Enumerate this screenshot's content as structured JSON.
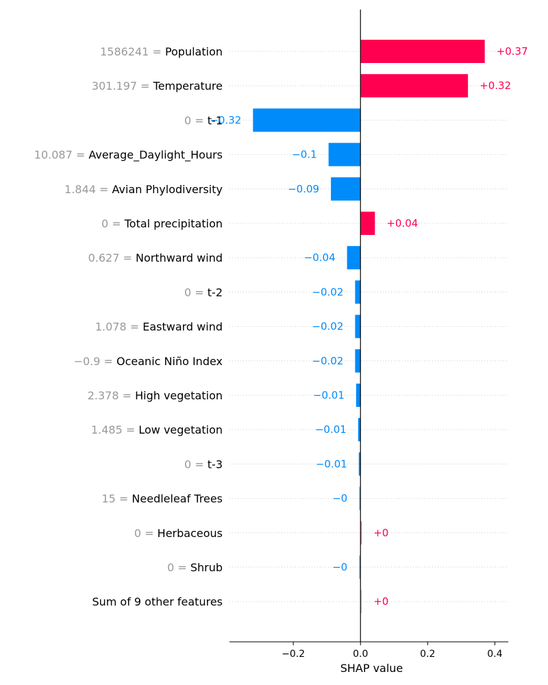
{
  "chart_data": {
    "type": "bar",
    "orientation": "horizontal",
    "xlabel": "SHAP value",
    "xlim": [
      -0.39,
      0.44
    ],
    "xticks": [
      -0.2,
      0.0,
      0.2,
      0.4
    ],
    "xtick_labels": [
      "−0.2",
      "0.0",
      "0.2",
      "0.4"
    ],
    "grid": "dotted row lines",
    "colors": {
      "positive": "#ff0051",
      "negative": "#008bfb",
      "other": "#cccccc",
      "feature_value_text": "#999999"
    },
    "rows": [
      {
        "feature_value": "1586241",
        "feature": "Population",
        "value": 0.37,
        "label": "+0.37"
      },
      {
        "feature_value": "301.197",
        "feature": "Temperature",
        "value": 0.32,
        "label": "+0.32"
      },
      {
        "feature_value": "0",
        "feature": "t-1",
        "value": -0.32,
        "label": "−0.32"
      },
      {
        "feature_value": "10.087",
        "feature": "Average_Daylight_Hours",
        "value": -0.095,
        "label": "−0.1"
      },
      {
        "feature_value": "1.844",
        "feature": "Avian Phylodiversity",
        "value": -0.088,
        "label": "−0.09"
      },
      {
        "feature_value": "0",
        "feature": "Total precipitation",
        "value": 0.043,
        "label": "+0.04"
      },
      {
        "feature_value": "0.627",
        "feature": "Northward wind",
        "value": -0.04,
        "label": "−0.04"
      },
      {
        "feature_value": "0",
        "feature": "t-2",
        "value": -0.016,
        "label": "−0.02"
      },
      {
        "feature_value": "1.078",
        "feature": "Eastward wind",
        "value": -0.016,
        "label": "−0.02"
      },
      {
        "feature_value": "−0.9",
        "feature": "Oceanic Niño Index",
        "value": -0.016,
        "label": "−0.02"
      },
      {
        "feature_value": "2.378",
        "feature": "High vegetation",
        "value": -0.013,
        "label": "−0.01"
      },
      {
        "feature_value": "1.485",
        "feature": "Low vegetation",
        "value": -0.007,
        "label": "−0.01"
      },
      {
        "feature_value": "0",
        "feature": "t-3",
        "value": -0.005,
        "label": "−0.01"
      },
      {
        "feature_value": "15",
        "feature": "Needleleaf Trees",
        "value": -0.002,
        "label": "−0"
      },
      {
        "feature_value": "0",
        "feature": "Herbaceous",
        "value": 0.003,
        "label": "+0"
      },
      {
        "feature_value": "0",
        "feature": "Shrub",
        "value": -0.002,
        "label": "−0"
      },
      {
        "feature_value": "",
        "feature": "Sum of 9 other features",
        "value": 0.003,
        "label": "+0",
        "is_other": true
      }
    ]
  }
}
